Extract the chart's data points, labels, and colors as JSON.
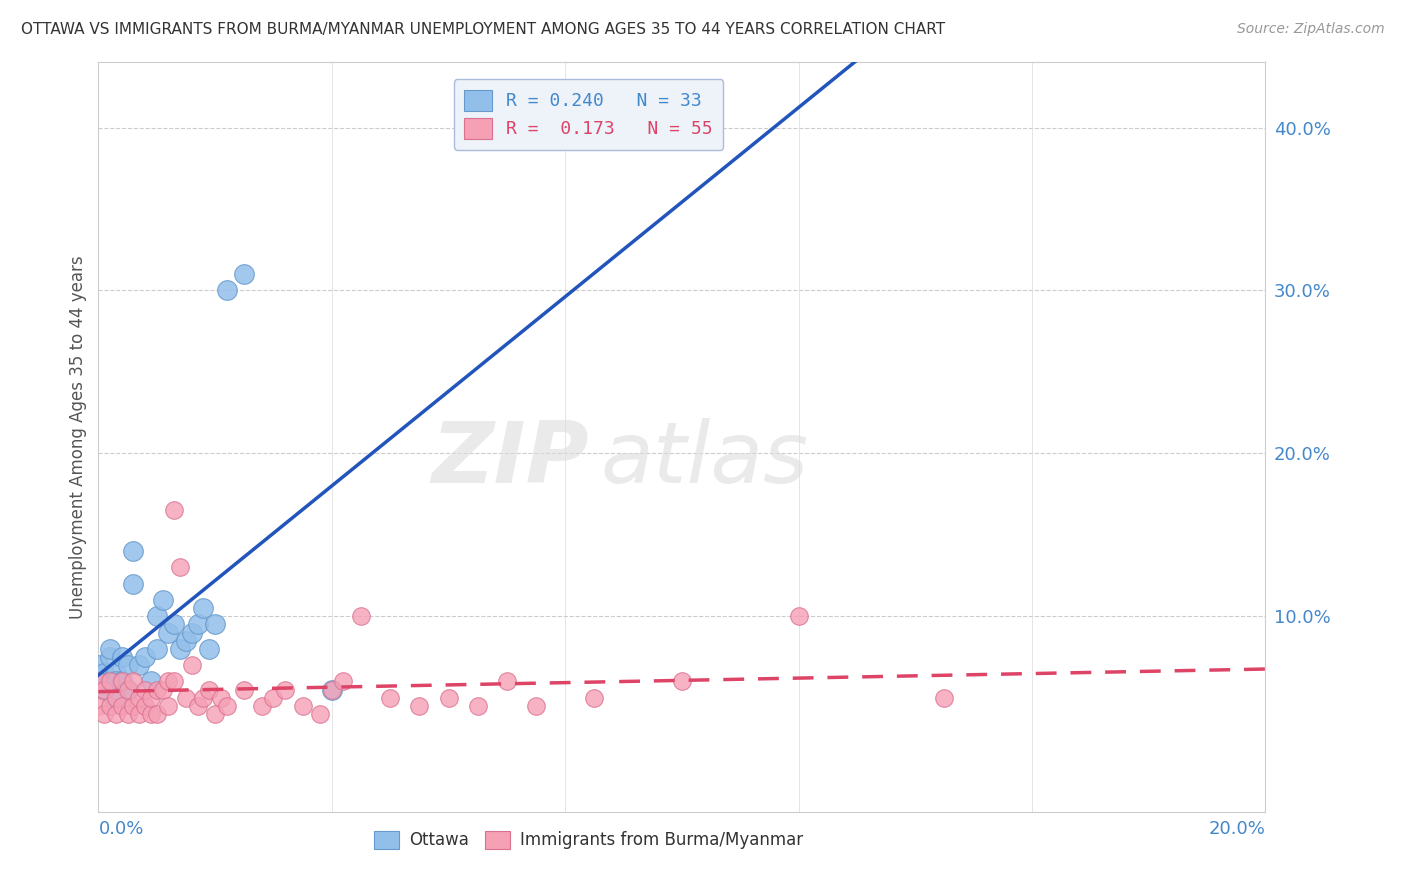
{
  "title": "OTTAWA VS IMMIGRANTS FROM BURMA/MYANMAR UNEMPLOYMENT AMONG AGES 35 TO 44 YEARS CORRELATION CHART",
  "source": "Source: ZipAtlas.com",
  "ylabel": "Unemployment Among Ages 35 to 44 years",
  "xlim": [
    0.0,
    0.2
  ],
  "ylim": [
    -0.02,
    0.44
  ],
  "yticks": [
    0.0,
    0.1,
    0.2,
    0.3,
    0.4
  ],
  "ytick_labels": [
    "",
    "10.0%",
    "20.0%",
    "30.0%",
    "40.0%"
  ],
  "xticks": [
    0.0,
    0.04,
    0.08,
    0.12,
    0.16,
    0.2
  ],
  "ottawa_color": "#92BFEA",
  "ottawa_edge_color": "#6699CC",
  "immigrants_color": "#F5A0B5",
  "immigrants_edge_color": "#D97090",
  "trend_ottawa_color": "#2255BB",
  "trend_immigrants_color": "#DD4466",
  "R_ottawa": "0.240",
  "N_ottawa": "33",
  "R_immigrants": "0.173",
  "N_immigrants": "55",
  "ottawa_x": [
    0.0,
    0.001,
    0.001,
    0.002,
    0.002,
    0.002,
    0.003,
    0.003,
    0.003,
    0.004,
    0.004,
    0.005,
    0.005,
    0.006,
    0.006,
    0.007,
    0.008,
    0.009,
    0.01,
    0.01,
    0.011,
    0.012,
    0.013,
    0.014,
    0.015,
    0.016,
    0.017,
    0.018,
    0.019,
    0.02,
    0.022,
    0.025,
    0.04
  ],
  "ottawa_y": [
    0.07,
    0.065,
    0.055,
    0.06,
    0.075,
    0.08,
    0.065,
    0.05,
    0.06,
    0.06,
    0.075,
    0.07,
    0.055,
    0.14,
    0.12,
    0.07,
    0.075,
    0.06,
    0.08,
    0.1,
    0.11,
    0.09,
    0.095,
    0.08,
    0.085,
    0.09,
    0.095,
    0.105,
    0.08,
    0.095,
    0.3,
    0.31,
    0.055
  ],
  "immigrants_x": [
    0.0,
    0.0,
    0.001,
    0.001,
    0.002,
    0.002,
    0.003,
    0.003,
    0.004,
    0.004,
    0.005,
    0.005,
    0.006,
    0.006,
    0.007,
    0.007,
    0.008,
    0.008,
    0.009,
    0.009,
    0.01,
    0.01,
    0.011,
    0.012,
    0.012,
    0.013,
    0.013,
    0.014,
    0.015,
    0.016,
    0.017,
    0.018,
    0.019,
    0.02,
    0.021,
    0.022,
    0.025,
    0.028,
    0.03,
    0.032,
    0.035,
    0.038,
    0.04,
    0.042,
    0.045,
    0.05,
    0.055,
    0.06,
    0.065,
    0.07,
    0.075,
    0.085,
    0.1,
    0.12,
    0.145
  ],
  "immigrants_y": [
    0.045,
    0.06,
    0.04,
    0.055,
    0.045,
    0.06,
    0.04,
    0.05,
    0.045,
    0.06,
    0.04,
    0.055,
    0.045,
    0.06,
    0.04,
    0.05,
    0.045,
    0.055,
    0.04,
    0.05,
    0.04,
    0.055,
    0.055,
    0.06,
    0.045,
    0.165,
    0.06,
    0.13,
    0.05,
    0.07,
    0.045,
    0.05,
    0.055,
    0.04,
    0.05,
    0.045,
    0.055,
    0.045,
    0.05,
    0.055,
    0.045,
    0.04,
    0.055,
    0.06,
    0.1,
    0.05,
    0.045,
    0.05,
    0.045,
    0.06,
    0.045,
    0.05,
    0.06,
    0.1,
    0.05
  ],
  "background_color": "#FFFFFF",
  "grid_color": "#CCCCCC",
  "tick_color": "#4488CC",
  "ylabel_color": "#555555"
}
